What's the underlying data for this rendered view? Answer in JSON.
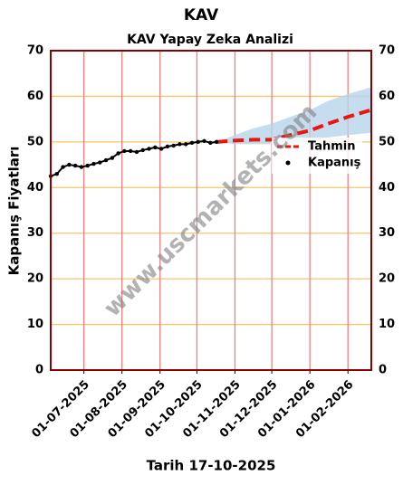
{
  "chart_data": {
    "type": "line",
    "title": "KAV",
    "subtitle": "KAV Yapay Zeka Analizi",
    "y_label": "Kapanış Fiyatları",
    "x_label": "Tarih 17-10-2025",
    "watermark": "www.uscmarkets.com",
    "xlim": [
      "2025-06-04",
      "2026-02-20"
    ],
    "ylim": [
      0,
      70
    ],
    "yticks": [
      0,
      10,
      20,
      30,
      40,
      50,
      60,
      70
    ],
    "xticks": [
      {
        "value": "2025-07-01",
        "label": "01-07-2025"
      },
      {
        "value": "2025-08-01",
        "label": "01-08-2025"
      },
      {
        "value": "2025-09-01",
        "label": "01-09-2025"
      },
      {
        "value": "2025-10-01",
        "label": "01-10-2025"
      },
      {
        "value": "2025-11-01",
        "label": "01-11-2025"
      },
      {
        "value": "2025-12-01",
        "label": "01-12-2025"
      },
      {
        "value": "2026-01-01",
        "label": "01-01-2026"
      },
      {
        "value": "2026-02-01",
        "label": "01-02-2026"
      }
    ],
    "grid": true,
    "legend": "center right",
    "series": [
      {
        "name": "Tahmin",
        "color": "#e8160c",
        "band_color": "#b7d5ea",
        "x": [
          "2025-10-17",
          "2025-11-01",
          "2025-11-16",
          "2025-12-01",
          "2025-12-16",
          "2026-01-01",
          "2026-01-16",
          "2026-02-01",
          "2026-02-20"
        ],
        "values": [
          50,
          50.3,
          50.5,
          50.5,
          51.5,
          52.5,
          54,
          55.5,
          57
        ],
        "upper": [
          50,
          51.5,
          53,
          54,
          55.5,
          57,
          59,
          60.5,
          62
        ],
        "lower": [
          50,
          49.5,
          49.5,
          49.5,
          49.5,
          50,
          51,
          51.5,
          52
        ]
      },
      {
        "name": "Kapanış",
        "color": "#000000",
        "x": [
          "2025-06-04",
          "2025-06-09",
          "2025-06-14",
          "2025-06-19",
          "2025-06-24",
          "2025-06-29",
          "2025-07-04",
          "2025-07-09",
          "2025-07-14",
          "2025-07-19",
          "2025-07-24",
          "2025-07-29",
          "2025-08-03",
          "2025-08-08",
          "2025-08-13",
          "2025-08-18",
          "2025-08-23",
          "2025-08-28",
          "2025-09-02",
          "2025-09-07",
          "2025-09-12",
          "2025-09-17",
          "2025-09-22",
          "2025-09-27",
          "2025-10-02",
          "2025-10-07",
          "2025-10-12",
          "2025-10-17"
        ],
        "values": [
          42.5,
          43,
          44.5,
          45,
          44.8,
          44.5,
          44.8,
          45.2,
          45.5,
          46,
          46.5,
          47.5,
          48,
          48,
          47.8,
          48.2,
          48.5,
          48.8,
          48.5,
          49,
          49.2,
          49.5,
          49.5,
          49.8,
          50,
          50.2,
          49.8,
          50
        ]
      }
    ]
  }
}
